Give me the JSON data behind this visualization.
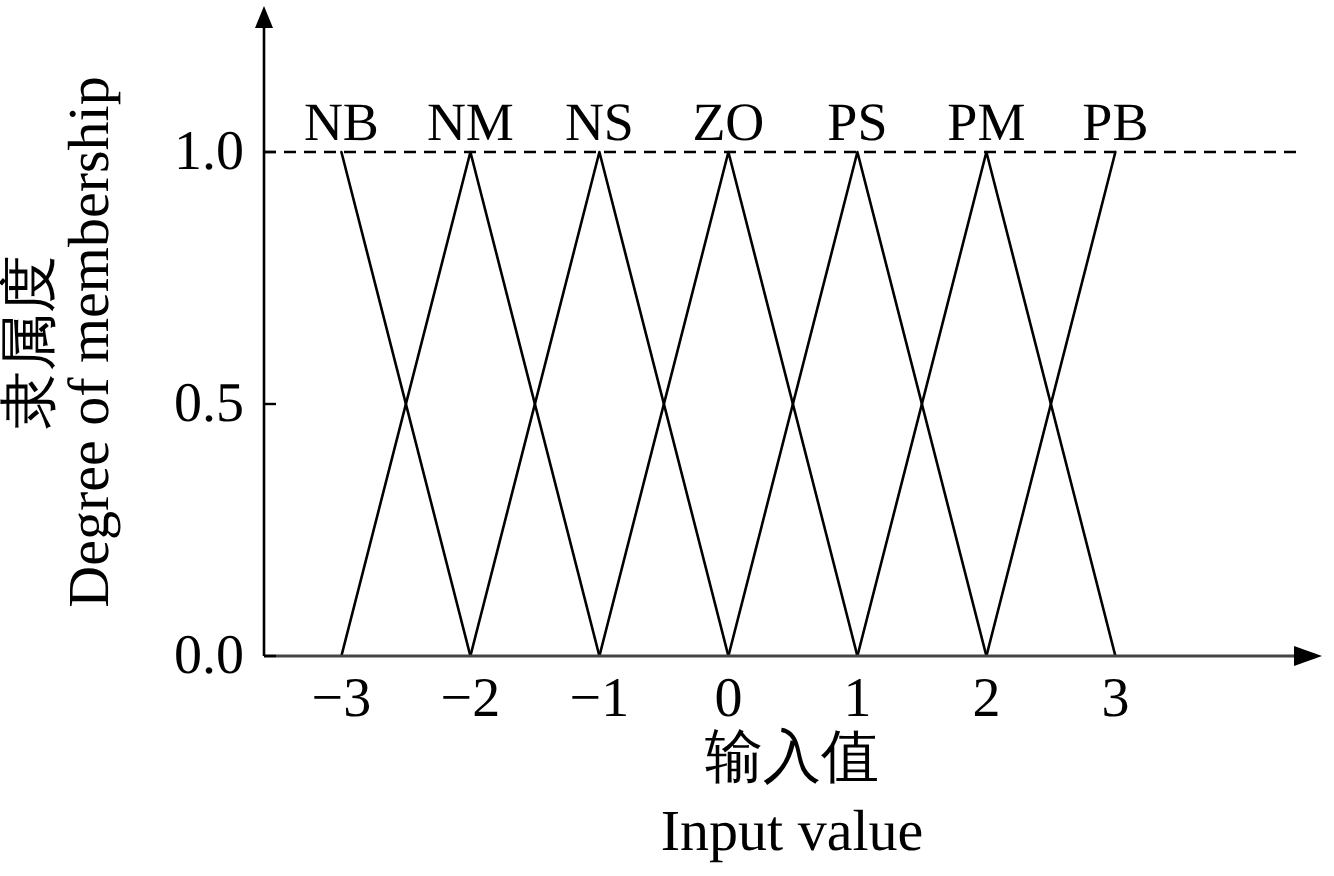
{
  "chart_data": {
    "type": "line",
    "xlabel": "输入值\nInput value",
    "ylabel": "隶属度\nDegree of membership",
    "series": [
      {
        "name": "NB",
        "color": "#000000",
        "x": [
          -3,
          -2
        ],
        "values": [
          1,
          0
        ]
      },
      {
        "name": "NM",
        "color": "#000000",
        "x": [
          -3,
          -2,
          -1
        ],
        "values": [
          0,
          1,
          0
        ]
      },
      {
        "name": "NS",
        "color": "#000000",
        "x": [
          -2,
          -1,
          0
        ],
        "values": [
          0,
          1,
          0
        ]
      },
      {
        "name": "ZO",
        "color": "#000000",
        "x": [
          -1,
          0,
          1
        ],
        "values": [
          0,
          1,
          0
        ]
      },
      {
        "name": "PS",
        "color": "#000000",
        "x": [
          0,
          1,
          2
        ],
        "values": [
          0,
          1,
          0
        ]
      },
      {
        "name": "PM",
        "color": "#000000",
        "x": [
          1,
          2,
          3
        ],
        "values": [
          0,
          1,
          0
        ]
      },
      {
        "name": "PB",
        "color": "#000000",
        "x": [
          2,
          3
        ],
        "values": [
          0,
          1
        ]
      }
    ],
    "xlim": [
      -3.6,
      4.4
    ],
    "xticks": [
      {
        "value": -3,
        "label": "−3"
      },
      {
        "value": -2,
        "label": "−2"
      },
      {
        "value": -1,
        "label": "−1"
      },
      0,
      1,
      2,
      3
    ],
    "ylim": [
      0,
      1.25
    ],
    "yticks": [
      {
        "value": 0,
        "label": "0.0"
      },
      {
        "value": 0.5,
        "label": "0.5"
      },
      {
        "value": 1,
        "label": "1.0"
      }
    ],
    "ref_lines": [
      {
        "axis": "y",
        "value": 1,
        "color": "#000000",
        "line_style": "dashed"
      }
    ],
    "line_style": "solid"
  }
}
